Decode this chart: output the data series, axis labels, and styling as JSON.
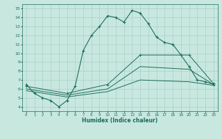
{
  "xlabel": "Humidex (Indice chaleur)",
  "ylabel": "",
  "bg_color": "#c8e8df",
  "line_color": "#1a6b5a",
  "grid_color": "#a8cfc7",
  "xlim": [
    -0.5,
    23.5
  ],
  "ylim": [
    3.5,
    15.5
  ],
  "xticks": [
    0,
    1,
    2,
    3,
    4,
    5,
    6,
    7,
    8,
    9,
    10,
    11,
    12,
    13,
    14,
    15,
    16,
    17,
    18,
    19,
    20,
    21,
    22,
    23
  ],
  "yticks": [
    4,
    5,
    6,
    7,
    8,
    9,
    10,
    11,
    12,
    13,
    14,
    15
  ],
  "line1_x": [
    0,
    1,
    2,
    3,
    4,
    5,
    6,
    7,
    8,
    9,
    10,
    11,
    12,
    13,
    14,
    15,
    16,
    17,
    18,
    19,
    20,
    21,
    22,
    23
  ],
  "line1_y": [
    6.5,
    5.5,
    5.0,
    4.7,
    4.0,
    4.7,
    6.3,
    10.3,
    12.0,
    13.0,
    14.2,
    14.0,
    13.5,
    14.8,
    14.5,
    13.3,
    11.8,
    11.2,
    11.0,
    9.8,
    8.5,
    7.0,
    6.8,
    6.5
  ],
  "line2_x": [
    0,
    5,
    10,
    14,
    20,
    23
  ],
  "line2_y": [
    6.3,
    5.5,
    6.5,
    9.8,
    9.8,
    6.6
  ],
  "line3_x": [
    0,
    5,
    10,
    14,
    20,
    23
  ],
  "line3_y": [
    6.0,
    5.3,
    6.0,
    8.5,
    8.2,
    6.5
  ],
  "line4_x": [
    0,
    5,
    10,
    14,
    20,
    23
  ],
  "line4_y": [
    5.8,
    5.1,
    5.7,
    7.0,
    6.8,
    6.4
  ]
}
